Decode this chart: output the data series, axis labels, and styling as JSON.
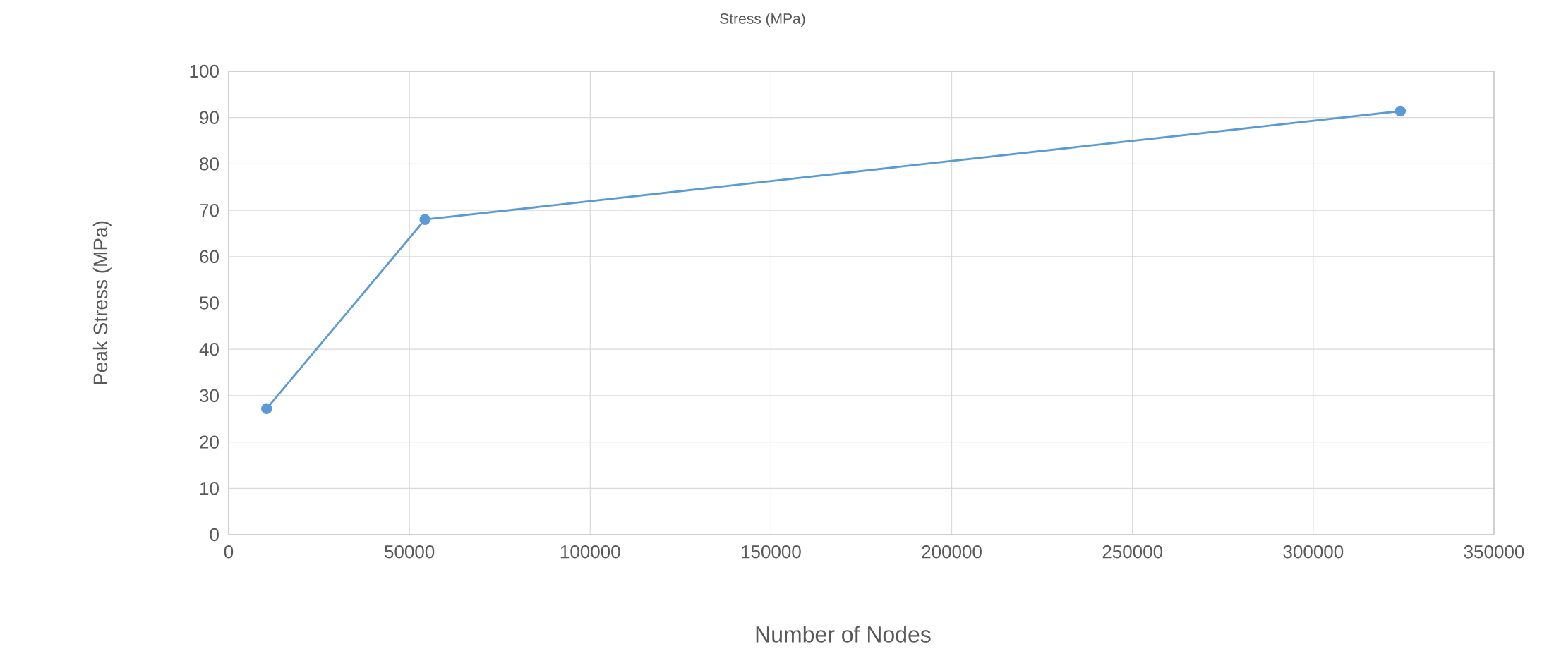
{
  "chart_data": {
    "type": "line",
    "title": "Stress (MPa)",
    "xlabel": "Number of Nodes",
    "ylabel": "Peak Stress (MPa)",
    "x": [
      10500,
      54300,
      324100
    ],
    "series": [
      {
        "color": "#5b9bd5",
        "values": [
          27.2,
          68.0,
          91.4
        ]
      }
    ],
    "xlim": [
      0,
      350000
    ],
    "xticks": [
      0,
      50000,
      100000,
      150000,
      200000,
      250000,
      300000,
      350000
    ],
    "ylim": [
      0,
      100
    ],
    "yticks": [
      0,
      10,
      20,
      30,
      40,
      50,
      60,
      70,
      80,
      90,
      100
    ],
    "grid": true,
    "marker": "circle",
    "line_style": "solid"
  }
}
